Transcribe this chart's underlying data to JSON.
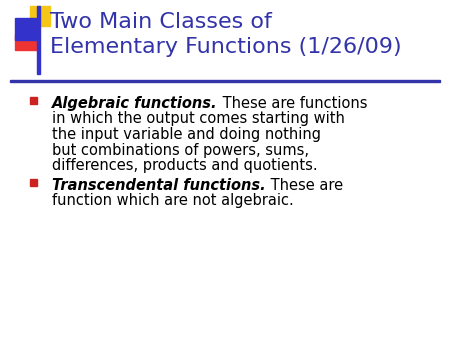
{
  "title_line1": "Two Main Classes of",
  "title_line2": "Elementary Functions (1/26/09)",
  "title_color": "#3333aa",
  "background_color": "#ffffff",
  "accent_yellow": "#f5c518",
  "accent_blue": "#3333cc",
  "accent_red": "#ee3333",
  "separator_color": "#3333aa",
  "bullet_color": "#cc2222",
  "font_size_title": 16,
  "font_size_body": 10.5,
  "bullet1_italic": "Algebraic functions.",
  "bullet1_normal": " These are functions in which the output comes starting with the input variable and doing nothing but combinations of powers, sums, differences, products and quotients.",
  "bullet2_italic": "Transcendental functions.",
  "bullet2_normal": " These are function which are not algebraic."
}
